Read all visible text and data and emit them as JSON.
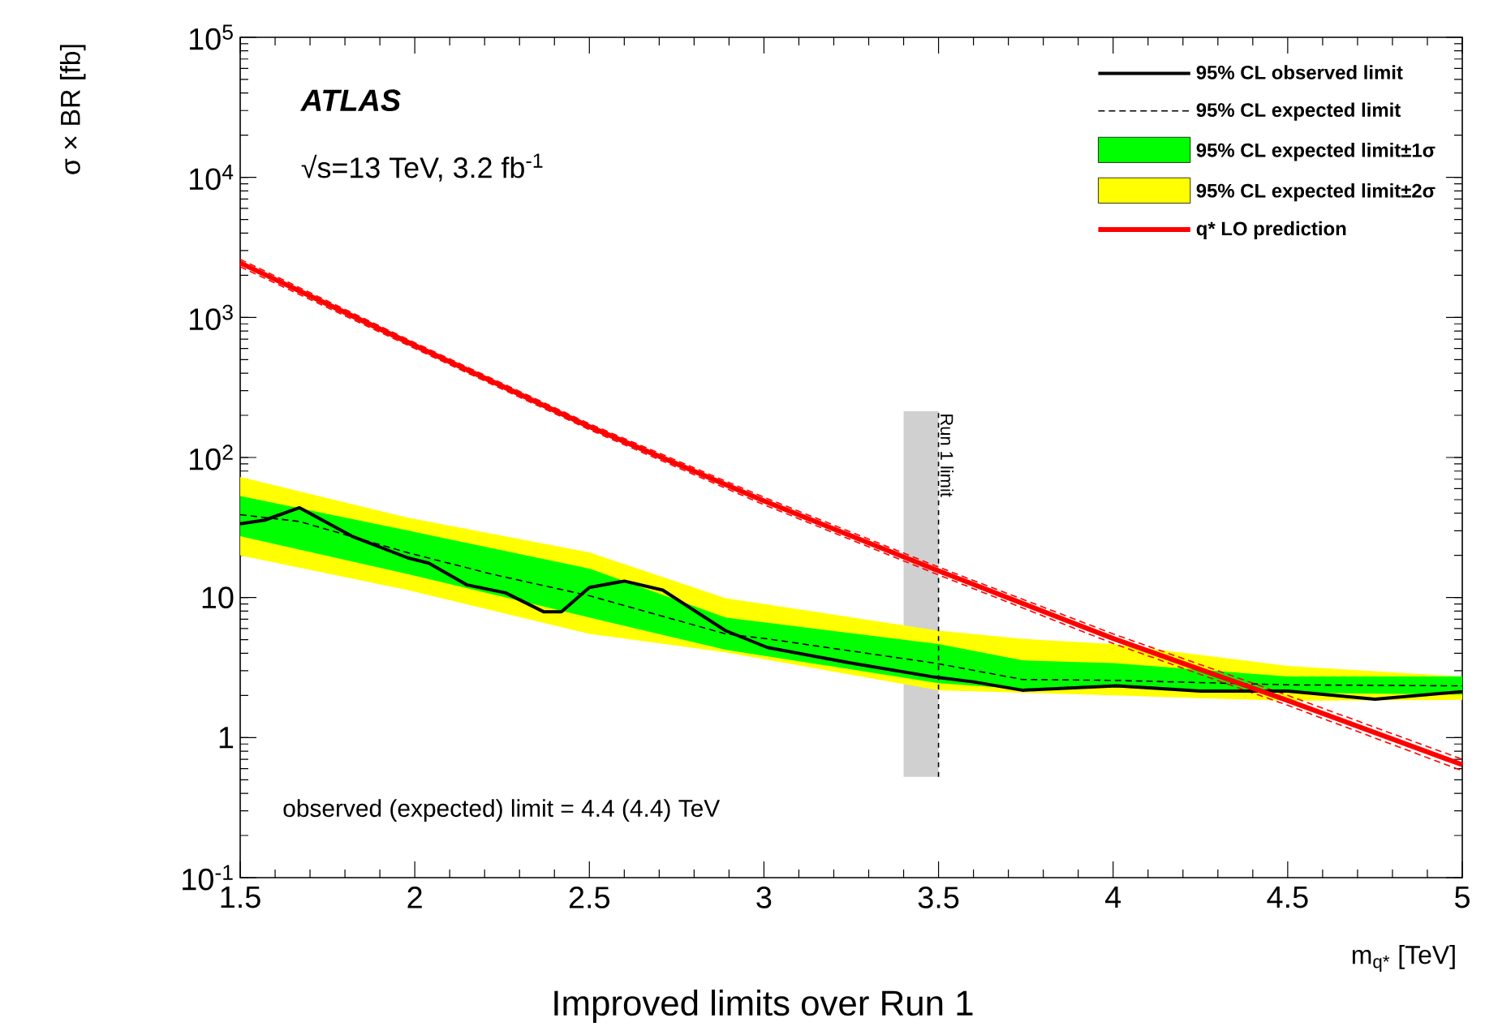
{
  "chart_data": {
    "type": "line",
    "xlabel": "m$_{q*}$ [TeV]",
    "ylabel": "σ × BR [fb]",
    "log": "y",
    "grid": false,
    "legend": "top right",
    "marker": "none",
    "xlim": [
      1.5,
      5
    ],
    "ylim": [
      0.1,
      100000
    ],
    "xticks": [
      1.5,
      2,
      2.5,
      3,
      3.5,
      4,
      4.5,
      5
    ],
    "yticks": [
      {
        "value": 0.1,
        "label": "10$^{-1}$"
      },
      1,
      10,
      {
        "value": 100,
        "label": "10$^{2}$"
      },
      {
        "value": 1000,
        "label": "10$^{3}$"
      },
      {
        "value": 10000,
        "label": "10$^{4}$"
      },
      {
        "value": 100000,
        "label": "10$^{5}$"
      }
    ],
    "annotations": [
      "ATLAS",
      "√s=13 TeV, 3.2 fb$^{-1}$",
      "observed (expected) limit = 4.4 (4.4) TeV",
      "Improved limits over Run 1"
    ],
    "bands": [
      {
        "axis": "x",
        "from": 3.4,
        "to": 3.5,
        "label": "Run 1 limit",
        "color": "#d0d0d0"
      }
    ],
    "series": [
      {
        "name": "95% CL observed limit",
        "color": "#000000",
        "line_style": "solid",
        "x": [
          1.5,
          1.57,
          1.67,
          1.82,
          1.98,
          2.04,
          2.15,
          2.26,
          2.37,
          2.42,
          2.5,
          2.6,
          2.71,
          2.89,
          3.01,
          3.25,
          3.49,
          3.6,
          3.74,
          4.01,
          4.25,
          4.5,
          4.75,
          5.0
        ],
        "values": [
          33.6,
          35.7,
          43.8,
          27.4,
          19.2,
          17.6,
          12.3,
          10.8,
          7.9,
          7.9,
          11.8,
          13.1,
          11.3,
          5.8,
          4.4,
          3.4,
          2.7,
          2.5,
          2.18,
          2.34,
          2.15,
          2.15,
          1.88,
          2.13
        ]
      },
      {
        "name": "95% CL expected limit",
        "color": "#000000",
        "line_style": "dashed",
        "x": [
          1.5,
          1.67,
          1.98,
          2.22,
          2.5,
          2.89,
          3.01,
          3.49,
          3.74,
          4.01,
          4.5,
          5.0
        ],
        "values": [
          39.1,
          34.9,
          20.9,
          14.7,
          10.3,
          5.5,
          5.07,
          3.4,
          2.6,
          2.56,
          2.38,
          2.34
        ]
      },
      {
        "name": "95% CL expected limit±1σ",
        "type": "area",
        "color": "#00ff00",
        "x": [
          1.5,
          1.98,
          2.5,
          2.89,
          3.5,
          3.74,
          4.0,
          4.5,
          5.0
        ],
        "values": [
          null,
          null,
          null,
          null,
          null,
          null,
          null,
          null,
          null
        ],
        "lower": [
          27.4,
          14.7,
          7.2,
          4.24,
          2.45,
          2.22,
          2.28,
          2.09,
          2.03
        ],
        "upper": [
          53,
          30.1,
          16.1,
          7.2,
          4.66,
          3.56,
          3.4,
          2.73,
          2.73
        ]
      },
      {
        "name": "95% CL expected limit±2σ",
        "type": "area",
        "color": "#ffff00",
        "x": [
          1.5,
          1.98,
          2.5,
          2.89,
          3.5,
          3.74,
          4.0,
          4.5,
          5.0
        ],
        "values": [
          null,
          null,
          null,
          null,
          null,
          null,
          null,
          null,
          null
        ],
        "lower": [
          20,
          11.3,
          5.5,
          4.06,
          2.18,
          2.09,
          2.0,
          1.83,
          1.86
        ],
        "upper": [
          72.6,
          37.2,
          21,
          9.9,
          5.8,
          5.07,
          4.66,
          3.25,
          2.73
        ]
      },
      {
        "name": "q* LO prediction",
        "color": "#ff0000",
        "line_style": "solid",
        "x": [
          1.5,
          2,
          2.5,
          3,
          3.5,
          4,
          4.5,
          5
        ],
        "values": [
          2450,
          630,
          166,
          49,
          15.5,
          5.1,
          1.84,
          0.64
        ]
      },
      {
        "color": "#ff0000",
        "line_style": "dashed",
        "x": [
          1.5,
          2,
          2.5,
          3,
          3.5,
          4,
          4.5,
          5
        ],
        "values": [
          2300,
          600,
          158,
          46,
          14.5,
          4.7,
          1.7,
          0.58
        ]
      },
      {
        "color": "#ff0000",
        "line_style": "dashed",
        "x": [
          1.5,
          2,
          2.5,
          3,
          3.5,
          4,
          4.5,
          5
        ],
        "values": [
          2600,
          660,
          174,
          52,
          16.5,
          5.5,
          2.0,
          0.7
        ]
      }
    ]
  }
}
